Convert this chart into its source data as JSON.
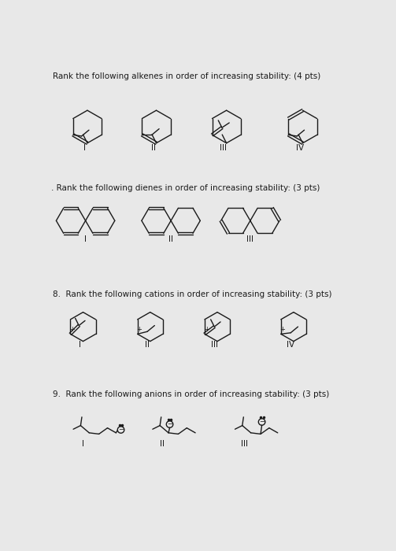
{
  "bg_color": "#e8e8e8",
  "line_color": "#1a1a1a",
  "title1": "Rank the following alkenes in order of increasing stability: (4 pts)",
  "title2": ". Rank the following dienes in order of increasing stability: (3 pts)",
  "title3": "8.  Rank the following cations in order of increasing stability: (3 pts)",
  "title4": "9.  Rank the following anions in order of increasing stability: (3 pts)",
  "label_fontsize": 7.5,
  "title_fontsize": 7.5
}
